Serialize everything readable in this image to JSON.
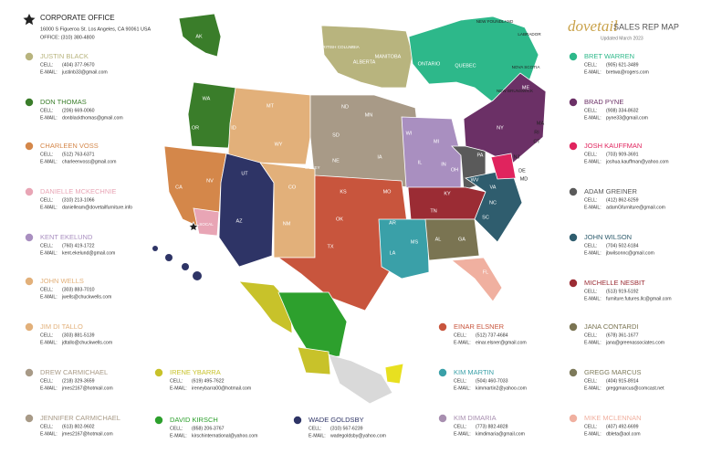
{
  "header": {
    "logo": "dovetail",
    "title": "SALES REP MAP",
    "updated": "Updated March 2023"
  },
  "corporate": {
    "title": "CORPORATE OFFICE",
    "address": "16000 S Figueroa St. Los Angeles, CA 90061 USA",
    "phone": "OFFICE: (310) 380-4800"
  },
  "cell_label": "CELL:",
  "email_label": "E-MAIL:",
  "reps": [
    {
      "name": "JUSTIN BLACK",
      "color": "#b8b47e",
      "cell": "(404) 377-9670",
      "email": "justinb33@gmail.com"
    },
    {
      "name": "DON THOMAS",
      "color": "#3a7d2a",
      "cell": "(206) 669-0060",
      "email": "donblackthomas@gmail.com"
    },
    {
      "name": "CHARLEEN VOSS",
      "color": "#d4874a",
      "cell": "(512) 763-6371",
      "email": "charleenvoss@gmail.com"
    },
    {
      "name": "DANIELLE MCKECHNIE",
      "color": "#e8a5b5",
      "cell": "(310) 213-1066",
      "email": "danielleam@dovetailfurniture.info"
    },
    {
      "name": "KENT EKELUND",
      "color": "#a98fc0",
      "cell": "(760) 419-1722",
      "email": "kent.ekelund@gmail.com"
    },
    {
      "name": "JOHN WELLS",
      "color": "#e2b07a",
      "cell": "(303) 883-7010",
      "email": "jwells@chuckwells.com"
    },
    {
      "name": "JIM DI TALLO",
      "color": "#e2b07a",
      "cell": "(303) 881-5139",
      "email": "jdtallo@chuckwells.com"
    },
    {
      "name": "DREW  CARMICHAEL",
      "color": "#a89a87",
      "cell": "(218) 329-3659",
      "email": "jmes2167@hotmail.com"
    },
    {
      "name": "JENNIFER CARMICHAEL",
      "color": "#a89a87",
      "cell": "(613) 802-9602",
      "email": "jmes2167@hotmail.com"
    },
    {
      "name": "IRENE YBARRA",
      "color": "#c8c22a",
      "cell": "(619) 495-7622",
      "email": "ireneybarra00@hotmail.com"
    },
    {
      "name": "DAVID KIRSCH",
      "color": "#2da02d",
      "cell": "(858) 206-3767",
      "email": "kirschinternational@yahoo.com"
    },
    {
      "name": "WADE GOLDSBY",
      "color": "#2e3466",
      "cell": "(310) 567-6239",
      "email": "wadegoldsby@yahoo.com"
    },
    {
      "name": "EINAR ELSNER",
      "color": "#c8553d",
      "cell": "(512) 737-4684",
      "email": "einar.elsner@gmail.com"
    },
    {
      "name": "KIM MARTIN",
      "color": "#3aa0a8",
      "cell": "(504) 460-7033",
      "email": "kimmartin2@yahoo.com"
    },
    {
      "name": "KIM DIMARIA",
      "color": "#a88fb0",
      "cell": "(773) 882-4828",
      "email": "kimdimaria@gmail.com"
    },
    {
      "name": "BRET WARREN",
      "color": "#2db88a",
      "cell": "(905) 621-3489",
      "email": "bretwa@rogers.com"
    },
    {
      "name": "BRAD PYNE",
      "color": "#6b3066",
      "cell": "(908) 334-8632",
      "email": "pyne33@gmail.com"
    },
    {
      "name": "JOSH KAUFFMAN",
      "color": "#e0245e",
      "cell": "(703) 909-3691",
      "email": "joshua.kauffman@yahoo.com"
    },
    {
      "name": "ADAM GREINER",
      "color": "#5a5a5a",
      "cell": "(412) 862-6259",
      "email": "adamGfurniture@gmail.com"
    },
    {
      "name": "JOHN WILSON",
      "color": "#2f5d6e",
      "cell": "(704) 502-6184",
      "email": "jbwilsonnc@gmail.com"
    },
    {
      "name": "MICHELLE NESBIT",
      "color": "#9b2c34",
      "cell": "(513) 919-5192",
      "email": "furniture.futures.llc@gmail.com"
    },
    {
      "name": "JANA CONTARDI",
      "color": "#7a7452",
      "cell": "(678) 361-1677",
      "email": "jana@greenassociates.com"
    },
    {
      "name": "GREGG MARCUS",
      "color": "#7d7a5a",
      "cell": "(404) 915-8914",
      "email": "greggmarcus@comcast.net"
    },
    {
      "name": "MIKE MCLENNAN",
      "color": "#f0b0a0",
      "cell": "(407) 492-6699",
      "email": "dbleta@aol.com"
    }
  ],
  "map_labels": [
    "AK",
    "WA",
    "OR",
    "CA",
    "NV",
    "ID",
    "MT",
    "WY",
    "UT",
    "AZ",
    "CO",
    "NM",
    "ND",
    "SD",
    "NE",
    "KS",
    "OK",
    "TX",
    "MN",
    "IA",
    "MO",
    "AR",
    "LA",
    "MS",
    "WI",
    "IL",
    "MI",
    "IN",
    "OH",
    "KY",
    "TN",
    "AL",
    "GA",
    "FL",
    "SC",
    "NC",
    "VA",
    "WV",
    "PA",
    "NY",
    "ME",
    "MA",
    "CT",
    "RI",
    "NJ",
    "DE",
    "MD",
    "BRITISH COLUMBIA",
    "ALBERTA",
    "MANITOBA",
    "ONTARIO",
    "QUEBEC",
    "NEW FOUNDLAND",
    "LABRADOR",
    "NOVA SCOTIA",
    "NEW BRUNSWICK",
    "SOCAL",
    "VALLEY"
  ]
}
